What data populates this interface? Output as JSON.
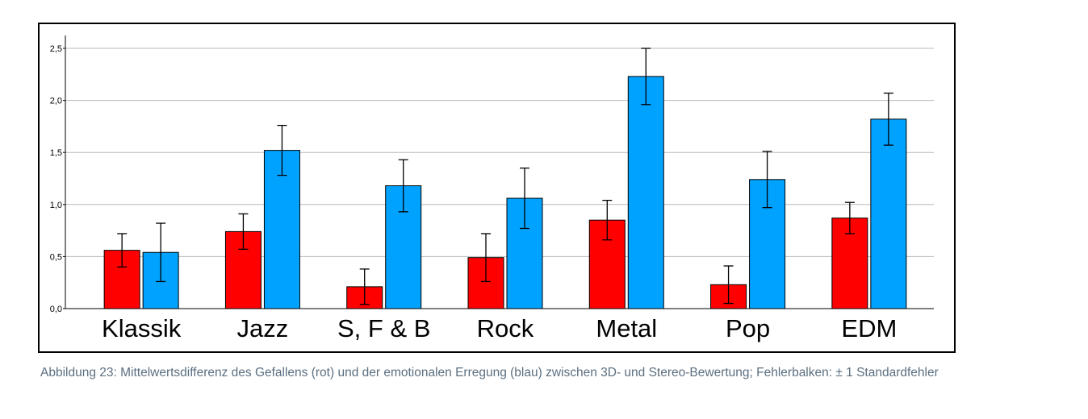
{
  "chart_data": {
    "type": "bar",
    "categories": [
      "Klassik",
      "Jazz",
      "S, F & B",
      "Rock",
      "Metal",
      "Pop",
      "EDM"
    ],
    "series": [
      {
        "color": "#ff0000",
        "values": [
          0.56,
          0.74,
          0.21,
          0.49,
          0.85,
          0.23,
          0.87
        ],
        "error": [
          0.16,
          0.17,
          0.17,
          0.23,
          0.19,
          0.18,
          0.15
        ]
      },
      {
        "color": "#00a2ff",
        "values": [
          0.54,
          1.52,
          1.18,
          1.06,
          2.23,
          1.24,
          1.82
        ],
        "error": [
          0.28,
          0.24,
          0.25,
          0.29,
          0.27,
          0.27,
          0.25
        ]
      }
    ],
    "ylim": [
      0,
      2.5
    ],
    "yticks": [
      "0,0",
      "0,5",
      "1,0",
      "1,5",
      "2,0",
      "2,5"
    ],
    "ytick_values": [
      0,
      0.5,
      1.0,
      1.5,
      2.0,
      2.5
    ],
    "grid": true,
    "legend": "none"
  },
  "caption": "Abbildung 23: Mittelwertsdifferenz des Gefallens (rot) und der emotionalen Erregung (blau) zwischen 3D- und Stereo-Bewertung; Fehlerbalken: ± 1 Standardfehler"
}
